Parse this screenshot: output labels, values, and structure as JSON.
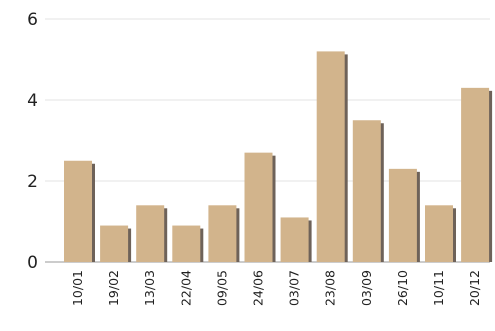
{
  "chart_data": {
    "type": "bar",
    "title": "",
    "xlabel": "",
    "ylabel": "",
    "categories": [
      "10/01",
      "19/02",
      "13/03",
      "22/04",
      "09/05",
      "24/06",
      "03/07",
      "23/08",
      "03/09",
      "26/10",
      "10/11",
      "20/12"
    ],
    "values": [
      2.5,
      0.9,
      1.4,
      0.9,
      1.4,
      2.7,
      1.1,
      5.2,
      3.5,
      2.3,
      1.4,
      4.3
    ],
    "ylim": [
      0,
      6
    ],
    "yticks": [
      0,
      2,
      4,
      6
    ],
    "grid": true,
    "legend": "none",
    "colors": {
      "bar": "#d2b48c",
      "bar_shadow": "#6e6259",
      "grid": "#e3e3e3",
      "axis": "#9a9a9a"
    }
  }
}
